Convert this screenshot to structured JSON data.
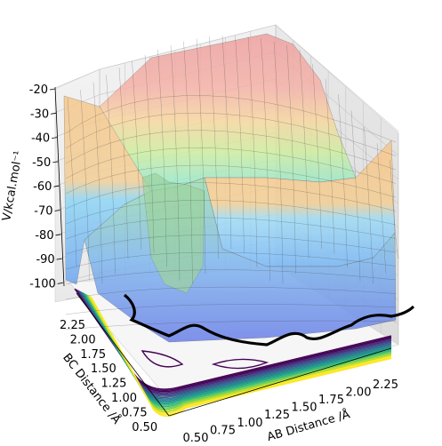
{
  "chart_data": {
    "type": "surface3d",
    "description_free": true,
    "xlabel": "AB Distance /Å",
    "ylabel": "BC Distance /Å",
    "zlabel": "V/kcal.mol⁻¹",
    "x_ticks": [
      "0.50",
      "0.75",
      "1.00",
      "1.25",
      "1.50",
      "1.75",
      "2.00",
      "2.25"
    ],
    "y_ticks": [
      "0.50",
      "0.75",
      "1.00",
      "1.25",
      "1.50",
      "1.75",
      "2.00",
      "2.25"
    ],
    "z_ticks": [
      "-20",
      "-30",
      "-40",
      "-50",
      "-60",
      "-70",
      "-80",
      "-90",
      "-100"
    ],
    "xlim": [
      0.5,
      2.4
    ],
    "ylim": [
      0.5,
      2.4
    ],
    "zlim": [
      -105,
      -20
    ],
    "colormap_surface": "jet",
    "colormap_contour": "viridis",
    "grid": true
  }
}
